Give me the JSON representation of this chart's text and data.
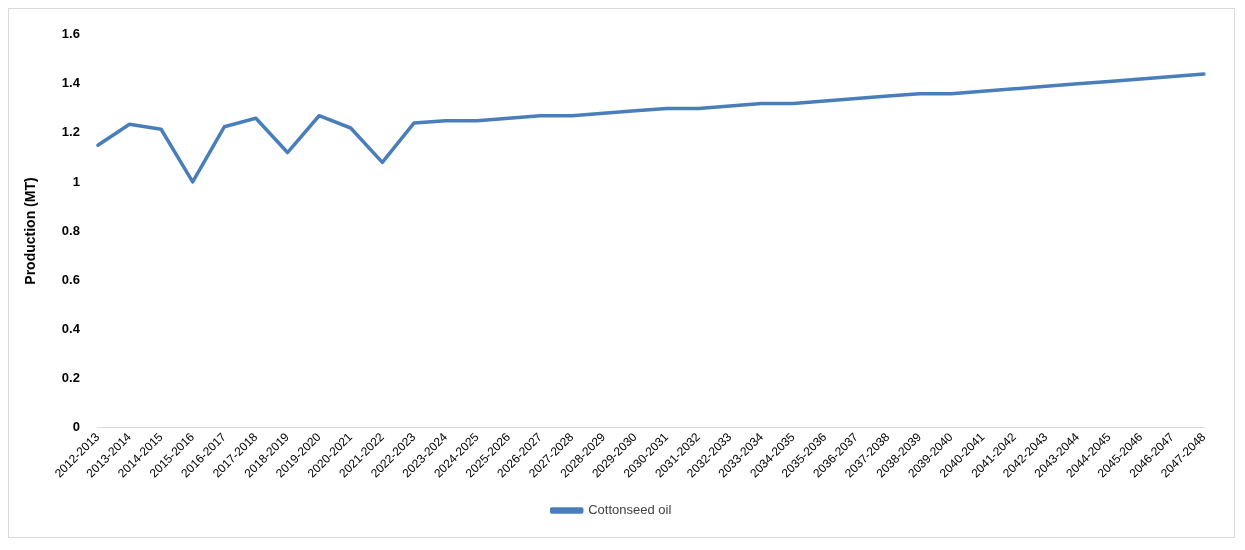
{
  "chart_data": {
    "type": "line",
    "ylabel": "Production (MT)",
    "categories": [
      "2012-2013",
      "2013-2014",
      "2014-2015",
      "2015-2016",
      "2016-2017",
      "2017-2018",
      "2018-2019",
      "2019-2020",
      "2020-2021",
      "2021-2022",
      "2022-2023",
      "2023-2024",
      "2024-2025",
      "2025-2026",
      "2026-2027",
      "2027-2028",
      "2028-2029",
      "2029-2030",
      "2030-2031",
      "2031-2032",
      "2032-2033",
      "2033-2034",
      "2034-2035",
      "2035-2036",
      "2036-2037",
      "2037-2038",
      "2038-2039",
      "2039-2040",
      "2040-2041",
      "2041-2042",
      "2042-2043",
      "2043-2044",
      "2044-2045",
      "2045-2046",
      "2046-2047",
      "2047-2048"
    ],
    "series": [
      {
        "name": "Cottonseed oil",
        "color": "#4a7ebb",
        "values": [
          1.15,
          1.235,
          1.215,
          1.0,
          1.225,
          1.26,
          1.12,
          1.27,
          1.22,
          1.08,
          1.24,
          1.25,
          1.25,
          1.26,
          1.27,
          1.27,
          1.28,
          1.29,
          1.3,
          1.3,
          1.31,
          1.32,
          1.32,
          1.33,
          1.34,
          1.35,
          1.36,
          1.36,
          1.37,
          1.38,
          1.39,
          1.4,
          1.41,
          1.42,
          1.43,
          1.44
        ]
      }
    ],
    "ylim": [
      0,
      1.6
    ],
    "yticks": [
      0,
      0.2,
      0.4,
      0.6,
      0.8,
      1,
      1.2,
      1.4,
      1.6
    ],
    "grid": false,
    "legend": "bottom",
    "marker": "none",
    "line_style": "solid"
  }
}
